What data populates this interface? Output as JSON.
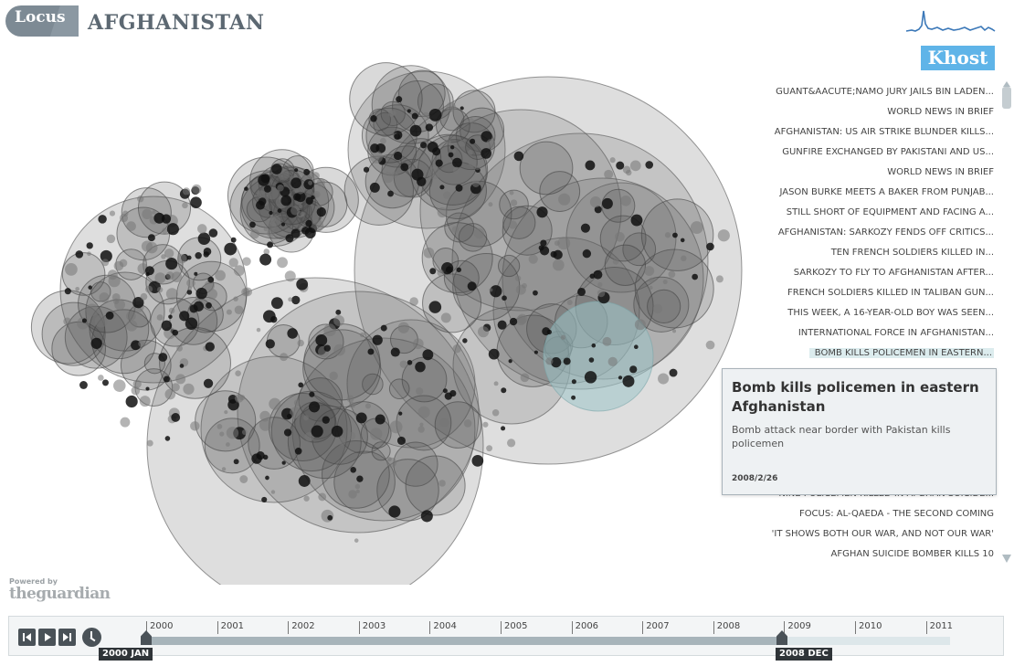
{
  "header": {
    "logo": "Locus",
    "title": "AFGHANISTAN",
    "selected_place": "Khost"
  },
  "articles_top": [
    "GUANT&AACUTE;NAMO JURY JAILS BIN LADEN...",
    "WORLD NEWS IN BRIEF",
    "AFGHANISTAN: US AIR STRIKE BLUNDER KILLS...",
    "GUNFIRE EXCHANGED BY PAKISTANI AND US...",
    "WORLD NEWS IN BRIEF",
    "JASON BURKE MEETS A BAKER FROM PUNJAB...",
    "STILL SHORT OF EQUIPMENT AND FACING A...",
    "AFGHANISTAN: SARKOZY FENDS OFF CRITICS...",
    "TEN FRENCH SOLDIERS KILLED IN...",
    "SARKOZY TO FLY TO AFGHANISTAN AFTER...",
    "FRENCH SOLDIERS KILLED IN TALIBAN GUN...",
    "THIS WEEK, A 16-YEAR-OLD BOY WAS SEEN...",
    "INTERNATIONAL FORCE IN AFGHANISTAN...",
    "BOMB KILLS POLICEMEN IN EASTERN..."
  ],
  "articles_bottom": [
    "NINE POLICEMEN KILLED IN AFGHAN SUICIDE...",
    "FOCUS: AL-QAEDA - THE SECOND COMING",
    "'IT SHOWS BOTH OUR WAR, AND NOT OUR WAR'",
    "AFGHAN SUICIDE BOMBER KILLS 10"
  ],
  "popup": {
    "title": "Bomb kills policemen in eastern Afghanistan",
    "description": "Bomb attack near border with Pakistan kills policemen",
    "date": "2008/2/26"
  },
  "footer": {
    "powered_by": "Powered by",
    "brand": "theguardian"
  },
  "timeline": {
    "years": [
      "2000",
      "2001",
      "2002",
      "2003",
      "2004",
      "2005",
      "2006",
      "2007",
      "2008",
      "2009",
      "2010",
      "2011"
    ],
    "range_start": "2000 JAN",
    "range_end": "2008 DEC"
  },
  "colors": {
    "accent": "#5fb4e8",
    "highlight_bubble": "#9cc4c8",
    "bubble": "#5a5a5a"
  }
}
